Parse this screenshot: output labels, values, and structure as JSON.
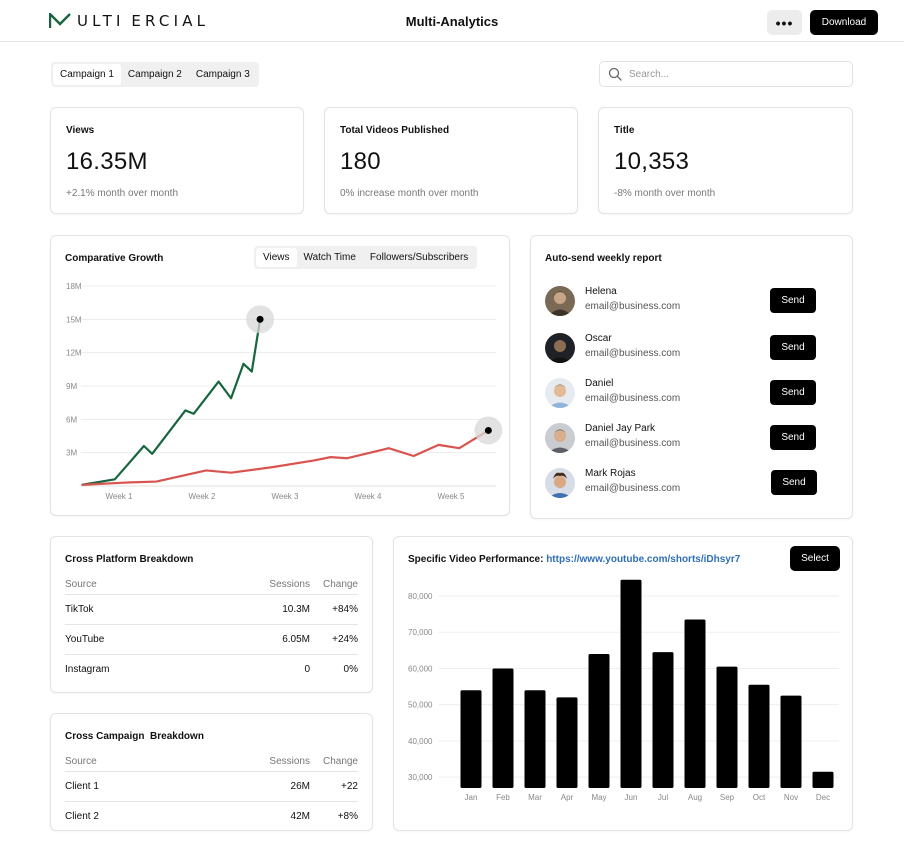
{
  "header": {
    "brand": "MULTIMERCIAL",
    "brand_display": "ULTI ERCIAL",
    "title": "Multi-Analytics",
    "more_label": "•••",
    "download_label": "Download"
  },
  "campaign_tabs": [
    "Campaign 1",
    "Campaign 2",
    "Campaign 3"
  ],
  "search": {
    "placeholder": "Search..."
  },
  "stats": [
    {
      "label": "Views",
      "value": "16.35M",
      "sub": "+2.1% month over month"
    },
    {
      "label": "Total Videos Published",
      "value": "180",
      "sub": "0% increase month over month"
    },
    {
      "label": "Title",
      "value": "10,353",
      "sub": "-8% month over month"
    }
  ],
  "growth": {
    "title": "Comparative Growth",
    "tabs": [
      "Views",
      "Watch Time",
      "Followers/Subscribers"
    ],
    "active_tab": "Views",
    "chart_data": {
      "type": "line",
      "x": [
        "Week 1",
        "Week 2",
        "Week 3",
        "Week 4",
        "Week 5"
      ],
      "y_ticks": [
        "18M",
        "15M",
        "12M",
        "9M",
        "6M",
        "3M"
      ],
      "series": [
        {
          "color": "#17663f",
          "points": [
            [
              0.0,
              0.1
            ],
            [
              0.4,
              0.6
            ],
            [
              0.75,
              3.6
            ],
            [
              0.85,
              2.9
            ],
            [
              1.25,
              6.8
            ],
            [
              1.35,
              6.5
            ],
            [
              1.65,
              9.4
            ],
            [
              1.8,
              7.9
            ],
            [
              1.95,
              11.0
            ],
            [
              2.05,
              10.3
            ],
            [
              2.15,
              15.0
            ]
          ]
        },
        {
          "color": "#d9534f",
          "points": [
            [
              0.0,
              0.1
            ],
            [
              0.5,
              0.3
            ],
            [
              0.9,
              0.4
            ],
            [
              1.5,
              1.4
            ],
            [
              1.8,
              1.2
            ],
            [
              2.3,
              1.7
            ],
            [
              2.8,
              2.3
            ],
            [
              3.0,
              2.6
            ],
            [
              3.2,
              2.5
            ],
            [
              3.7,
              3.4
            ],
            [
              4.0,
              2.7
            ],
            [
              4.3,
              3.7
            ],
            [
              4.55,
              3.4
            ],
            [
              4.9,
              5.0
            ]
          ]
        }
      ]
    }
  },
  "weekly_report": {
    "title": "Auto-send weekly report",
    "send_label": "Send",
    "contacts": [
      {
        "name": "Helena",
        "email": "email@business.com"
      },
      {
        "name": "Oscar",
        "email": "email@business.com"
      },
      {
        "name": "Daniel",
        "email": "email@business.com"
      },
      {
        "name": "Daniel Jay Park",
        "email": "email@business.com"
      },
      {
        "name": "Mark Rojas",
        "email": "email@business.com"
      }
    ]
  },
  "platform_breakdown": {
    "title": "Cross Platform Breakdown",
    "columns": [
      "Source",
      "Sessions",
      "Change"
    ],
    "rows": [
      [
        "TikTok",
        "10.3M",
        "+84%"
      ],
      [
        "YouTube",
        "6.05M",
        "+24%"
      ],
      [
        "Instagram",
        "0",
        "0%"
      ]
    ]
  },
  "campaign_breakdown": {
    "title": "Cross Campaign  Breakdown",
    "columns": [
      "Source",
      "Sessions",
      "Change"
    ],
    "rows": [
      [
        "Client 1",
        "26M",
        "+22"
      ],
      [
        "Client 2",
        "42M",
        "+8%"
      ]
    ]
  },
  "video_performance": {
    "title_prefix": "Specific Video Performance: ",
    "link": "https://www.youtube.com/shorts/iDhsyr7",
    "select_label": "Select",
    "chart_data": {
      "type": "bar",
      "categories": [
        "Jan",
        "Feb",
        "Mar",
        "Apr",
        "May",
        "Jun",
        "Jul",
        "Aug",
        "Sep",
        "Oct",
        "Nov",
        "Dec"
      ],
      "values": [
        54000,
        60000,
        54000,
        52000,
        64000,
        84500,
        64500,
        73500,
        60500,
        55500,
        52500,
        31500
      ],
      "y_ticks": [
        "80,000",
        "70,000",
        "60,000",
        "50,000",
        "40,000",
        "30,000"
      ],
      "ylim": [
        27000,
        80000
      ],
      "color": "#000000"
    }
  }
}
